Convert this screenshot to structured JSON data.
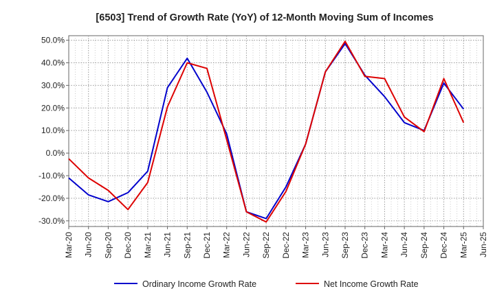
{
  "chart_data": {
    "type": "line",
    "title": "[6503]  Trend of Growth Rate (YoY) of 12-Month Moving Sum of Incomes",
    "xlabel": "",
    "ylabel": "",
    "x_tick_labels": [
      "Mar-20",
      "Jun-20",
      "Sep-20",
      "Dec-20",
      "Mar-21",
      "Jun-21",
      "Sep-21",
      "Dec-21",
      "Mar-22",
      "Jun-22",
      "Sep-22",
      "Dec-22",
      "Mar-23",
      "Jun-23",
      "Sep-23",
      "Dec-23",
      "Mar-24",
      "Jun-24",
      "Sep-24",
      "Dec-24",
      "Mar-25",
      "Jun-25"
    ],
    "y_tick_labels": [
      "50.0%",
      "40.0%",
      "30.0%",
      "20.0%",
      "10.0%",
      "0.0%",
      "-10.0%",
      "-20.0%",
      "-30.0%"
    ],
    "y_ticks": [
      50,
      40,
      30,
      20,
      10,
      0,
      -10,
      -20,
      -30
    ],
    "ylim": [
      -32.5,
      52
    ],
    "grid": true,
    "legend_position": "bottom",
    "colors": {
      "ordinary": "#0000cc",
      "net": "#dd0000",
      "grid": "#999999",
      "axis": "#666666"
    },
    "series": [
      {
        "name": "Ordinary Income Growth Rate",
        "color": "#0000cc",
        "values": [
          -11,
          -18.5,
          -21.5,
          -17.5,
          -8,
          29,
          42,
          27,
          8.5,
          -26,
          -29,
          -15,
          4,
          36,
          48.5,
          34.5,
          25,
          13.5,
          10,
          31,
          19.5
        ]
      },
      {
        "name": "Net Income Growth Rate",
        "color": "#dd0000",
        "values": [
          -2.5,
          -11,
          -16.5,
          -25,
          -13,
          20.5,
          40,
          37.5,
          6,
          -26,
          -30.5,
          -17,
          4,
          36,
          49.5,
          34,
          33,
          16,
          9.5,
          33,
          13.5
        ]
      }
    ]
  }
}
